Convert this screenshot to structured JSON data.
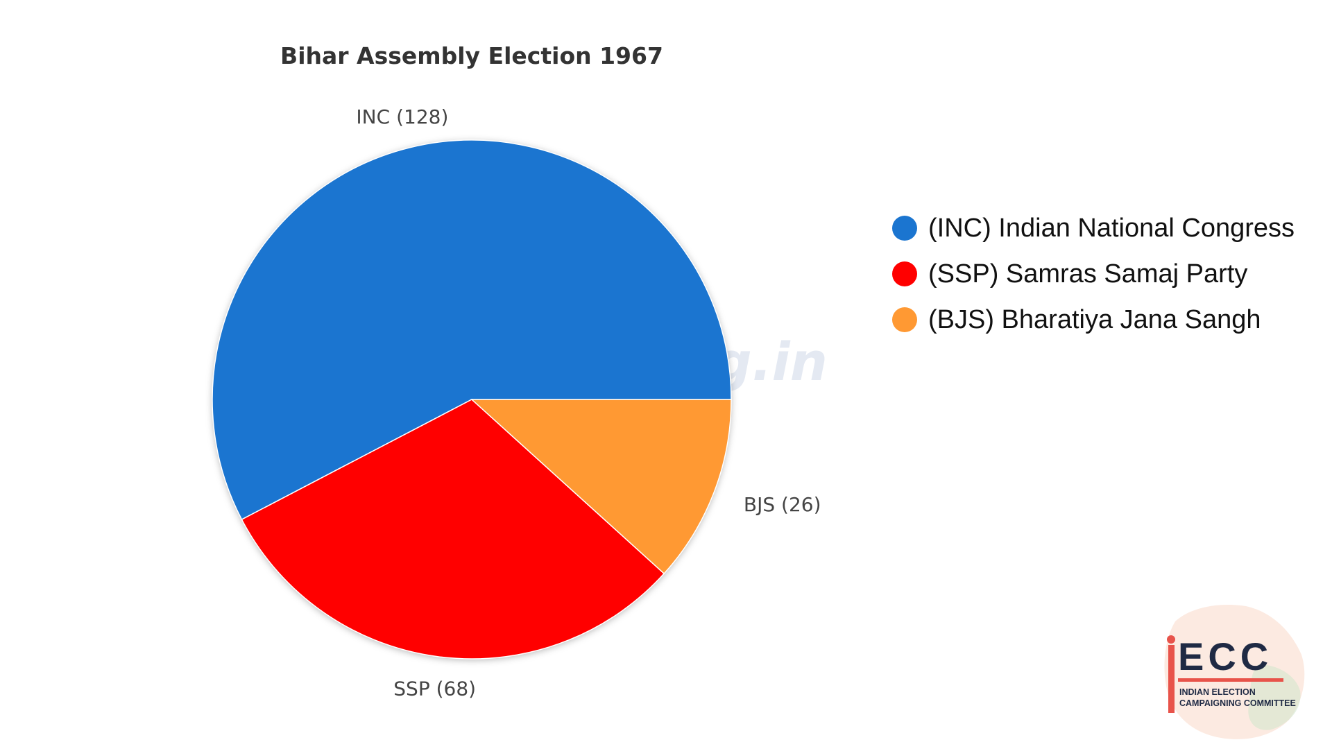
{
  "chart_data": {
    "type": "pie",
    "title": "Bihar Assembly Election 1967",
    "slices": [
      {
        "key": "INC",
        "label": "INC (128)",
        "value": 128,
        "color": "#1b75d0",
        "legend": "(INC) Indian National Congress"
      },
      {
        "key": "SSP",
        "label": "SSP (68)",
        "value": 68,
        "color": "#ff0000",
        "legend": "(SSP) Samras Samaj Party"
      },
      {
        "key": "BJS",
        "label": "BJS (26)",
        "value": 26,
        "color": "#ff9933",
        "legend": "(BJS) Bharatiya Jana Sangh"
      }
    ],
    "start_angle_deg": 0,
    "direction": "counterclockwise",
    "legend_position": "right"
  },
  "watermark": "iecc.org.in",
  "logo": {
    "letters": "ECC",
    "line1": "INDIAN ELECTION",
    "line2": "CAMPAIGNING COMMITTEE",
    "colors": {
      "text": "#1f2a44",
      "accent": "#e8534a",
      "tint": "#f6c4a8",
      "green": "#cfe6cc"
    }
  }
}
